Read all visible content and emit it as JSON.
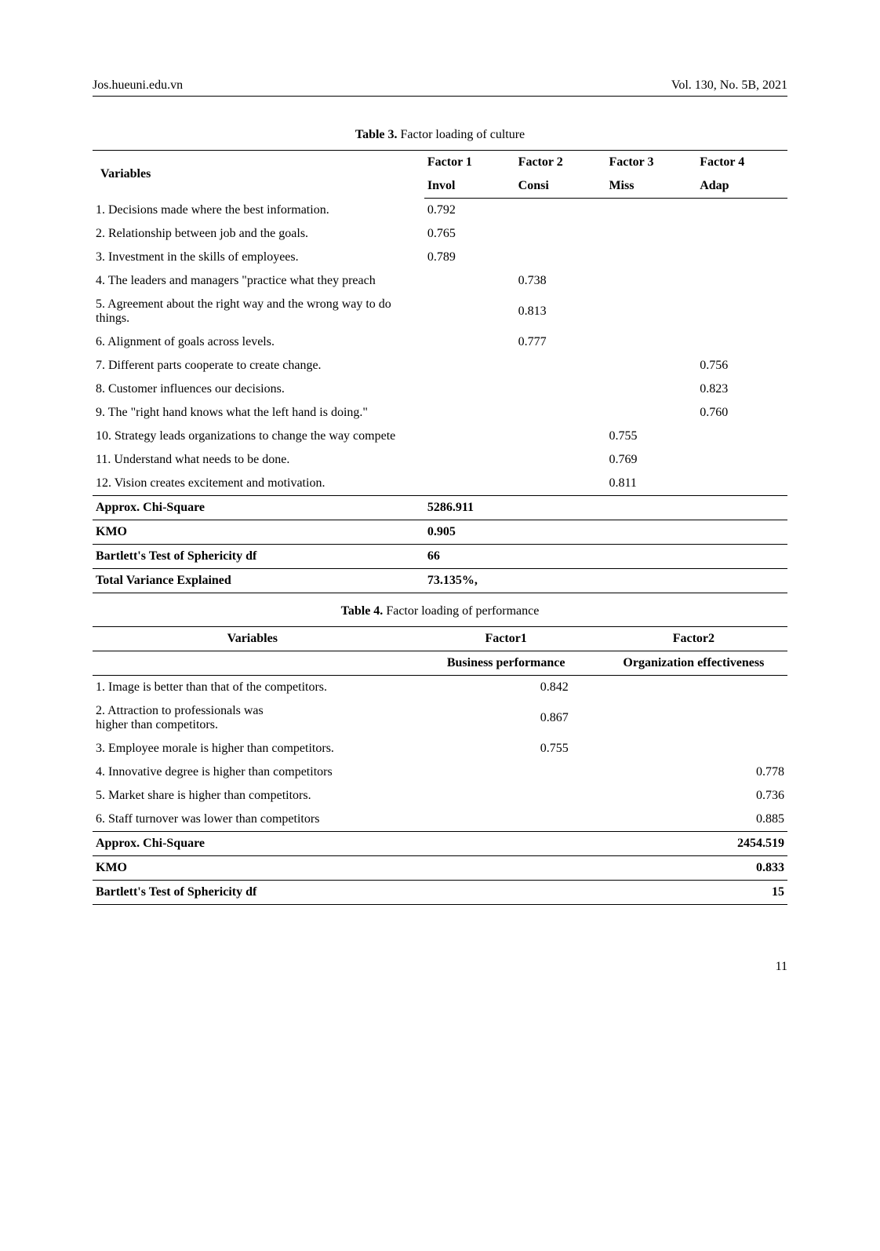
{
  "header": {
    "left": "Jos.hueuni.edu.vn",
    "right": "Vol. 130, No. 5B, 2021"
  },
  "table3": {
    "caption_bold": "Table 3.",
    "caption_rest": " Factor loading of culture",
    "vars_label": "Variables",
    "factor_labels": [
      "Factor 1",
      "Factor 2",
      "Factor 3",
      "Factor 4"
    ],
    "factor_sub": [
      "Invol",
      "Consi",
      "Miss",
      "Adap"
    ],
    "rows": [
      {
        "v": "1. Decisions made where the best information.",
        "f": [
          "0.792",
          "",
          "",
          ""
        ]
      },
      {
        "v": "2. Relationship between job and the goals.",
        "f": [
          "0.765",
          "",
          "",
          ""
        ]
      },
      {
        "v": "3. Investment in the skills of employees.",
        "f": [
          "0.789",
          "",
          "",
          ""
        ]
      },
      {
        "v": "4. The leaders and managers \"practice what they preach",
        "f": [
          "",
          "0.738",
          "",
          ""
        ]
      },
      {
        "v": "5. Agreement about the right way and the wrong way to do things.",
        "f": [
          "",
          "0.813",
          "",
          ""
        ]
      },
      {
        "v": "6. Alignment of goals across levels.",
        "f": [
          "",
          "0.777",
          "",
          ""
        ]
      },
      {
        "v": "7. Different parts cooperate to create change.",
        "f": [
          "",
          "",
          "",
          "0.756"
        ]
      },
      {
        "v": "8. Customer influences our decisions.",
        "f": [
          "",
          "",
          "",
          "0.823"
        ]
      },
      {
        "v": "9. The \"right hand knows what the left hand is doing.\"",
        "f": [
          "",
          "",
          "",
          "0.760"
        ]
      },
      {
        "v": "10. Strategy leads organizations to change the way compete",
        "f": [
          "",
          "",
          "0.755",
          ""
        ]
      },
      {
        "v": "11. Understand what needs to be done.",
        "f": [
          "",
          "",
          "0.769",
          ""
        ]
      },
      {
        "v": "12. Vision creates excitement and motivation.",
        "f": [
          "",
          "",
          "0.811",
          ""
        ]
      }
    ],
    "stats": [
      {
        "label": "Approx. Chi-Square",
        "value": "5286.911"
      },
      {
        "label": "KMO",
        "value": "0.905"
      },
      {
        "label": "Bartlett's Test of Sphericity df",
        "value": "66"
      },
      {
        "label": "Total Variance Explained",
        "value": "73.135%,"
      }
    ]
  },
  "table4": {
    "caption_bold": "Table 4.",
    "caption_rest": " Factor loading of performance",
    "vars_label": "Variables",
    "factor_labels": [
      "Factor1",
      "Factor2"
    ],
    "factor_sub": [
      "Business performance",
      "Organization effectiveness"
    ],
    "rows": [
      {
        "v": "1. Image is better than that of the competitors.",
        "f": [
          "0.842",
          ""
        ]
      },
      {
        "v": "2. Attraction to professionals was\nhigher than competitors.",
        "f": [
          "0.867",
          ""
        ]
      },
      {
        "v": "3. Employee morale is higher than competitors.",
        "f": [
          "0.755",
          ""
        ]
      },
      {
        "v": "4. Innovative degree is higher than competitors",
        "f": [
          "",
          "0.778"
        ]
      },
      {
        "v": "5. Market share is higher than competitors.",
        "f": [
          "",
          "0.736"
        ]
      },
      {
        "v": "6. Staff turnover was lower than competitors",
        "f": [
          "",
          "0.885"
        ]
      }
    ],
    "stats": [
      {
        "label": "Approx. Chi-Square",
        "value": "2454.519"
      },
      {
        "label": "KMO",
        "value": "0.833"
      },
      {
        "label": "Bartlett's Test of Sphericity df",
        "value": "15"
      }
    ]
  },
  "page_number": "11"
}
